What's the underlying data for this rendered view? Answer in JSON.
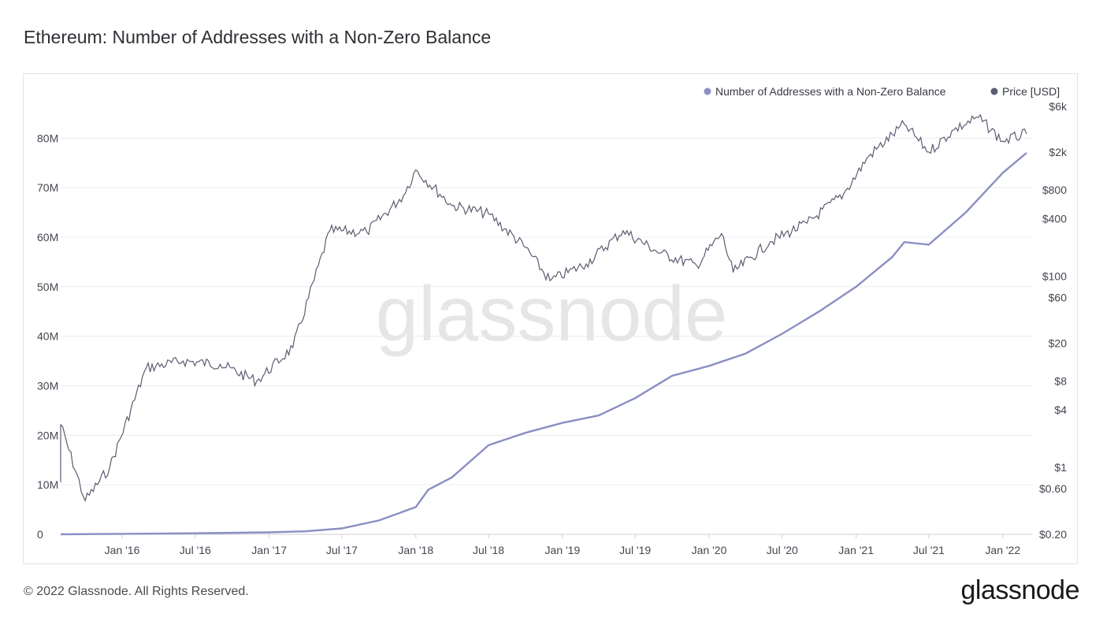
{
  "title": "Ethereum: Number of Addresses with a Non-Zero Balance",
  "footer": "© 2022 Glassnode. All Rights Reserved.",
  "brand": "glassnode",
  "watermark": "glassnode",
  "colors": {
    "addresses": "#8a8fc2",
    "price": "#5b5d72",
    "grid": "#ececf0",
    "watermark": "#e6e6e9"
  },
  "chart_data": {
    "type": "line",
    "title": "Ethereum: Number of Addresses with a Non-Zero Balance",
    "legend_position": "top-right",
    "grid": true,
    "x_ticks": [
      "Jan '16",
      "Jul '16",
      "Jan '17",
      "Jul '17",
      "Jan '18",
      "Jul '18",
      "Jan '19",
      "Jul '19",
      "Jan '20",
      "Jul '20",
      "Jan '21",
      "Jul '21",
      "Jan '22"
    ],
    "y_left": {
      "label": "",
      "ticks": [
        "0",
        "10M",
        "20M",
        "30M",
        "40M",
        "50M",
        "60M",
        "70M",
        "80M"
      ],
      "ylim": [
        0,
        88000000
      ]
    },
    "y_right": {
      "label": "",
      "scale": "log",
      "ticks": [
        "$0.20",
        "$0.60",
        "$1",
        "$4",
        "$8",
        "$20",
        "$60",
        "$100",
        "$400",
        "$800",
        "$2k",
        "$6k"
      ]
    },
    "series": [
      {
        "name": "Number of Addresses with a Non-Zero Balance",
        "axis": "left",
        "x": [
          "2015-08",
          "2016-01",
          "2016-07",
          "2017-01",
          "2017-04",
          "2017-07",
          "2017-10",
          "2018-01",
          "2018-02",
          "2018-04",
          "2018-07",
          "2018-10",
          "2019-01",
          "2019-04",
          "2019-07",
          "2019-10",
          "2020-01",
          "2020-04",
          "2020-07",
          "2020-10",
          "2021-01",
          "2021-04",
          "2021-05",
          "2021-07",
          "2021-10",
          "2022-01",
          "2022-03"
        ],
        "values": [
          0,
          100000,
          200000,
          400000,
          600000,
          1200000,
          2800000,
          5500000,
          9000000,
          11500000,
          18000000,
          20500000,
          22500000,
          24000000,
          27500000,
          32000000,
          34000000,
          36500000,
          40500000,
          45000000,
          50000000,
          56000000,
          59000000,
          58500000,
          65000000,
          73000000,
          77000000
        ]
      },
      {
        "name": "Price [USD]",
        "axis": "right",
        "x": [
          "2015-08",
          "2015-08",
          "2015-10",
          "2015-12",
          "2016-03",
          "2016-06",
          "2016-09",
          "2016-12",
          "2017-03",
          "2017-06",
          "2017-09",
          "2017-12",
          "2018-01",
          "2018-04",
          "2018-07",
          "2018-10",
          "2018-12",
          "2019-03",
          "2019-06",
          "2019-09",
          "2019-12",
          "2020-02",
          "2020-03",
          "2020-06",
          "2020-09",
          "2020-12",
          "2021-02",
          "2021-05",
          "2021-07",
          "2021-09",
          "2021-11",
          "2022-01",
          "2022-03"
        ],
        "values": [
          0.7,
          2.8,
          0.45,
          1.0,
          11,
          13,
          12,
          8,
          18,
          300,
          290,
          700,
          1300,
          550,
          450,
          200,
          90,
          135,
          300,
          175,
          130,
          280,
          110,
          230,
          360,
          730,
          1800,
          3900,
          2000,
          3400,
          4600,
          2600,
          3100
        ]
      }
    ]
  }
}
